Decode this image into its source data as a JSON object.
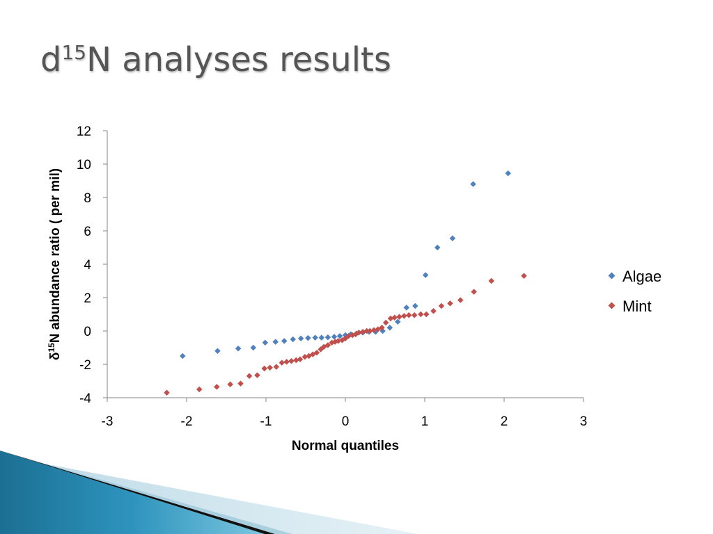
{
  "slide": {
    "title_prefix": "d",
    "title_superscript": "15",
    "title_rest": "N analyses results"
  },
  "colors": {
    "algae": "#4f81bd",
    "mint": "#c0504d",
    "axis": "#868686",
    "title_text": "#555555"
  },
  "chart_data": {
    "type": "scatter",
    "xlabel": "Normal quantiles",
    "ylabel_prefix": "δ",
    "ylabel_superscript": "15",
    "ylabel_rest": "N abundance ratio ( per mil)",
    "xlim": [
      -3,
      3
    ],
    "ylim": [
      -4,
      12
    ],
    "xticks": [
      -3,
      -2,
      -1,
      0,
      1,
      2,
      3
    ],
    "yticks": [
      -4,
      -2,
      0,
      2,
      4,
      6,
      8,
      10,
      12
    ],
    "grid": false,
    "legend_position": "right",
    "series": [
      {
        "name": "Algae",
        "color": "#4f81bd",
        "x": [
          -2.05,
          -1.61,
          -1.35,
          -1.16,
          -1.01,
          -0.88,
          -0.77,
          -0.66,
          -0.56,
          -0.47,
          -0.38,
          -0.3,
          -0.22,
          -0.14,
          -0.07,
          0.0,
          0.07,
          0.14,
          0.22,
          0.3,
          0.38,
          0.47,
          0.56,
          0.66,
          0.77,
          0.88,
          1.01,
          1.16,
          1.35,
          1.61,
          2.05
        ],
        "y": [
          -1.5,
          -1.2,
          -1.05,
          -1.0,
          -0.7,
          -0.65,
          -0.6,
          -0.5,
          -0.45,
          -0.42,
          -0.4,
          -0.4,
          -0.38,
          -0.35,
          -0.3,
          -0.25,
          -0.2,
          -0.15,
          -0.1,
          -0.05,
          -0.05,
          0.0,
          0.2,
          0.55,
          1.4,
          1.5,
          3.35,
          5.0,
          5.55,
          8.8,
          9.45
        ]
      },
      {
        "name": "Mint",
        "color": "#c0504d",
        "x": [
          -2.25,
          -1.84,
          -1.62,
          -1.45,
          -1.32,
          -1.21,
          -1.11,
          -1.02,
          -0.95,
          -0.87,
          -0.8,
          -0.74,
          -0.68,
          -0.62,
          -0.57,
          -0.51,
          -0.46,
          -0.41,
          -0.36,
          -0.31,
          -0.27,
          -0.22,
          -0.17,
          -0.13,
          -0.09,
          -0.04,
          0.0,
          0.04,
          0.09,
          0.13,
          0.17,
          0.22,
          0.27,
          0.31,
          0.36,
          0.41,
          0.46,
          0.51,
          0.57,
          0.62,
          0.68,
          0.74,
          0.8,
          0.87,
          0.95,
          1.02,
          1.11,
          1.21,
          1.32,
          1.45,
          1.62,
          1.84,
          2.25
        ],
        "y": [
          -3.7,
          -3.5,
          -3.35,
          -3.2,
          -3.15,
          -2.7,
          -2.65,
          -2.25,
          -2.2,
          -2.15,
          -1.9,
          -1.85,
          -1.8,
          -1.75,
          -1.7,
          -1.55,
          -1.5,
          -1.4,
          -1.3,
          -1.1,
          -0.95,
          -0.85,
          -0.7,
          -0.65,
          -0.6,
          -0.55,
          -0.45,
          -0.3,
          -0.25,
          -0.2,
          -0.1,
          -0.05,
          0.0,
          0.0,
          0.05,
          0.1,
          0.2,
          0.5,
          0.75,
          0.8,
          0.85,
          0.9,
          0.95,
          0.95,
          1.0,
          1.0,
          1.2,
          1.5,
          1.65,
          1.85,
          2.35,
          3.0,
          3.3
        ]
      }
    ]
  }
}
